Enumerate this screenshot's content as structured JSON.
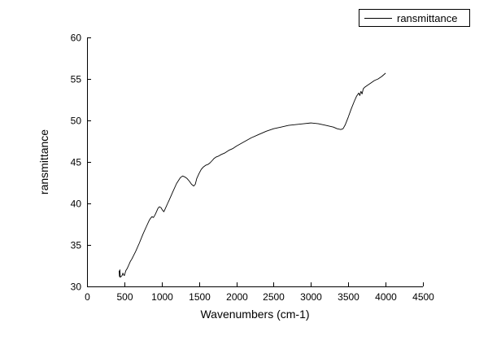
{
  "chart_data": {
    "type": "line",
    "title": "",
    "xlabel": "Wavenumbers (cm-1)",
    "ylabel": "ransmittance",
    "xlim": [
      0,
      4500
    ],
    "ylim": [
      30,
      60
    ],
    "x_ticks": [
      0,
      500,
      1000,
      1500,
      2000,
      2500,
      3000,
      3500,
      4000,
      4500
    ],
    "y_ticks": [
      30,
      35,
      40,
      45,
      50,
      55,
      60
    ],
    "grid": false,
    "legend": {
      "position": "top-right",
      "entries": [
        "ransmittance"
      ]
    },
    "line_color": "#000000",
    "series": [
      {
        "name": "ransmittance",
        "color": "#000000",
        "points": [
          [
            430,
            31.9
          ],
          [
            435,
            31.2
          ],
          [
            440,
            32.0
          ],
          [
            445,
            31.1
          ],
          [
            455,
            31.2
          ],
          [
            470,
            31.3
          ],
          [
            480,
            31.6
          ],
          [
            490,
            31.4
          ],
          [
            500,
            31.3
          ],
          [
            520,
            31.9
          ],
          [
            540,
            32.2
          ],
          [
            560,
            32.6
          ],
          [
            580,
            33.0
          ],
          [
            600,
            33.3
          ],
          [
            650,
            34.2
          ],
          [
            700,
            35.2
          ],
          [
            750,
            36.3
          ],
          [
            800,
            37.3
          ],
          [
            830,
            37.9
          ],
          [
            850,
            38.2
          ],
          [
            870,
            38.4
          ],
          [
            890,
            38.3
          ],
          [
            910,
            38.6
          ],
          [
            930,
            39.0
          ],
          [
            950,
            39.4
          ],
          [
            970,
            39.6
          ],
          [
            990,
            39.5
          ],
          [
            1010,
            39.2
          ],
          [
            1030,
            39.0
          ],
          [
            1050,
            39.4
          ],
          [
            1080,
            40.0
          ],
          [
            1100,
            40.4
          ],
          [
            1150,
            41.4
          ],
          [
            1200,
            42.4
          ],
          [
            1250,
            43.1
          ],
          [
            1280,
            43.3
          ],
          [
            1310,
            43.2
          ],
          [
            1340,
            43.0
          ],
          [
            1370,
            42.7
          ],
          [
            1400,
            42.3
          ],
          [
            1430,
            42.1
          ],
          [
            1450,
            42.3
          ],
          [
            1470,
            43.0
          ],
          [
            1500,
            43.6
          ],
          [
            1530,
            44.1
          ],
          [
            1560,
            44.4
          ],
          [
            1590,
            44.6
          ],
          [
            1620,
            44.7
          ],
          [
            1650,
            44.9
          ],
          [
            1680,
            45.2
          ],
          [
            1700,
            45.4
          ],
          [
            1730,
            45.6
          ],
          [
            1760,
            45.7
          ],
          [
            1800,
            45.9
          ],
          [
            1850,
            46.1
          ],
          [
            1900,
            46.4
          ],
          [
            1950,
            46.6
          ],
          [
            2000,
            46.9
          ],
          [
            2100,
            47.4
          ],
          [
            2200,
            47.9
          ],
          [
            2300,
            48.3
          ],
          [
            2400,
            48.7
          ],
          [
            2500,
            49.0
          ],
          [
            2600,
            49.2
          ],
          [
            2700,
            49.4
          ],
          [
            2800,
            49.5
          ],
          [
            2900,
            49.6
          ],
          [
            3000,
            49.7
          ],
          [
            3100,
            49.6
          ],
          [
            3200,
            49.4
          ],
          [
            3300,
            49.2
          ],
          [
            3350,
            49.0
          ],
          [
            3400,
            48.9
          ],
          [
            3430,
            49.0
          ],
          [
            3460,
            49.5
          ],
          [
            3500,
            50.4
          ],
          [
            3540,
            51.4
          ],
          [
            3580,
            52.3
          ],
          [
            3610,
            52.9
          ],
          [
            3640,
            53.3
          ],
          [
            3655,
            53.0
          ],
          [
            3670,
            53.5
          ],
          [
            3685,
            53.2
          ],
          [
            3700,
            53.8
          ],
          [
            3720,
            54.0
          ],
          [
            3750,
            54.2
          ],
          [
            3800,
            54.5
          ],
          [
            3850,
            54.8
          ],
          [
            3900,
            55.0
          ],
          [
            3950,
            55.3
          ],
          [
            4000,
            55.7
          ]
        ]
      }
    ]
  }
}
